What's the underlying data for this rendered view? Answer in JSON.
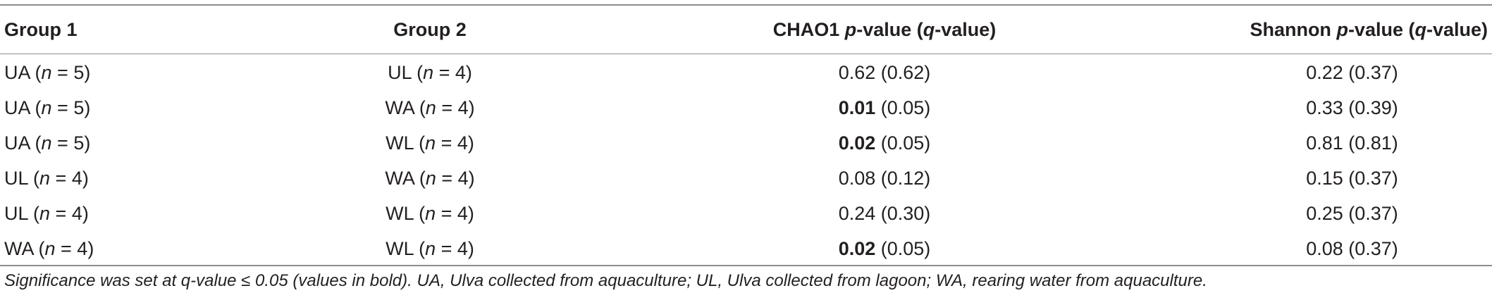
{
  "table": {
    "headers": {
      "group1": "Group 1",
      "group2": "Group 2",
      "chao1_prefix": "CHAO1 ",
      "chao1_p": "p",
      "chao1_mid": "-value (",
      "chao1_q": "q",
      "chao1_suffix": "-value)",
      "shannon_prefix": "Shannon ",
      "shannon_p": "p",
      "shannon_mid": "-value (",
      "shannon_q": "q",
      "shannon_suffix": "-value)"
    },
    "rows": [
      {
        "g1_name": "UA (",
        "g1_n": "n",
        "g1_count": " = 5)",
        "g2_name": "UL (",
        "g2_n": "n",
        "g2_count": " = 4)",
        "chao1_p": "",
        "chao1_rest": "0.62 (0.62)",
        "shannon": "0.22 (0.37)"
      },
      {
        "g1_name": "UA (",
        "g1_n": "n",
        "g1_count": " = 5)",
        "g2_name": "WA (",
        "g2_n": "n",
        "g2_count": " = 4)",
        "chao1_p": "0.01",
        "chao1_rest": " (0.05)",
        "shannon": "0.33 (0.39)"
      },
      {
        "g1_name": "UA (",
        "g1_n": "n",
        "g1_count": " = 5)",
        "g2_name": "WL (",
        "g2_n": "n",
        "g2_count": " = 4)",
        "chao1_p": "0.02",
        "chao1_rest": " (0.05)",
        "shannon": "0.81 (0.81)"
      },
      {
        "g1_name": "UL (",
        "g1_n": "n",
        "g1_count": " = 4)",
        "g2_name": "WA (",
        "g2_n": "n",
        "g2_count": " = 4)",
        "chao1_p": "",
        "chao1_rest": "0.08 (0.12)",
        "shannon": "0.15 (0.37)"
      },
      {
        "g1_name": "UL (",
        "g1_n": "n",
        "g1_count": " = 4)",
        "g2_name": "WL (",
        "g2_n": "n",
        "g2_count": " = 4)",
        "chao1_p": "",
        "chao1_rest": "0.24 (0.30)",
        "shannon": "0.25 (0.37)"
      },
      {
        "g1_name": "WA (",
        "g1_n": "n",
        "g1_count": " = 4)",
        "g2_name": "WL (",
        "g2_n": "n",
        "g2_count": " = 4)",
        "chao1_p": "0.02",
        "chao1_rest": " (0.05)",
        "shannon": "0.08 (0.37)"
      }
    ]
  },
  "footnote": "Significance was set at q-value ≤ 0.05 (values in bold). UA, Ulva collected from aquaculture; UL, Ulva collected from lagoon; WA, rearing water from aquaculture."
}
